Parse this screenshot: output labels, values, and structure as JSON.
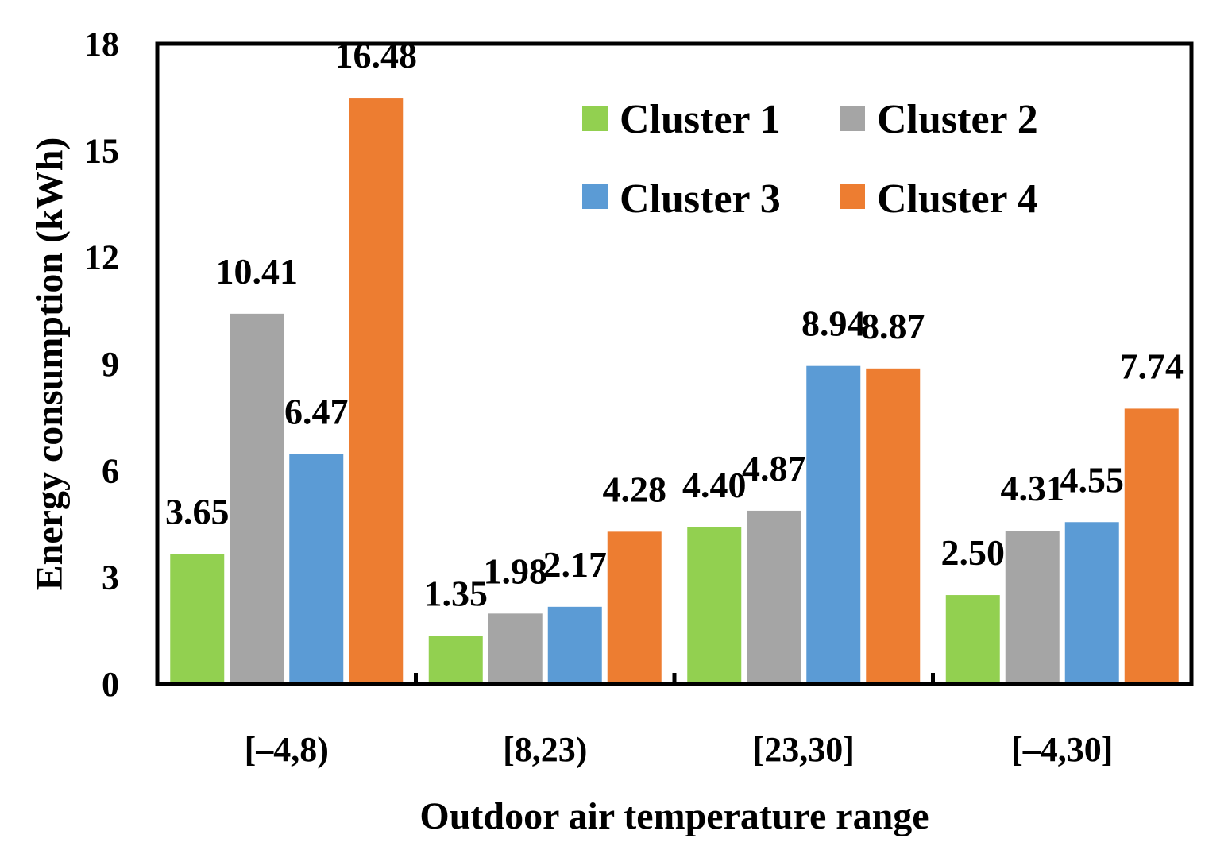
{
  "chart_data": {
    "type": "bar",
    "title": "",
    "xlabel": "Outdoor air temperature range",
    "ylabel": "Energy consumption (kWh)",
    "ylim": [
      0,
      18
    ],
    "yticks": [
      "0",
      "3",
      "6",
      "9",
      "12",
      "15",
      "18"
    ],
    "categories": [
      "[–4,8)",
      "[8,23)",
      "[23,30]",
      "[–4,30]"
    ],
    "legend_position": "top-right",
    "series": [
      {
        "name": "Cluster 1",
        "color": "#92D050",
        "values": [
          3.65,
          1.35,
          4.4,
          2.5
        ],
        "labels": [
          "3.65",
          "1.35",
          "4.40",
          "2.50"
        ]
      },
      {
        "name": "Cluster 2",
        "color": "#A5A5A5",
        "values": [
          10.41,
          1.98,
          4.87,
          4.31
        ],
        "labels": [
          "10.41",
          "1.98",
          "4.87",
          "4.31"
        ]
      },
      {
        "name": "Cluster 3",
        "color": "#5B9BD5",
        "values": [
          6.47,
          2.17,
          8.94,
          4.55
        ],
        "labels": [
          "6.47",
          "2.17",
          "8.94",
          "4.55"
        ]
      },
      {
        "name": "Cluster 4",
        "color": "#ED7D31",
        "values": [
          16.48,
          4.28,
          8.87,
          7.74
        ],
        "labels": [
          "16.48",
          "4.28",
          "8.87",
          "7.74"
        ]
      }
    ]
  }
}
